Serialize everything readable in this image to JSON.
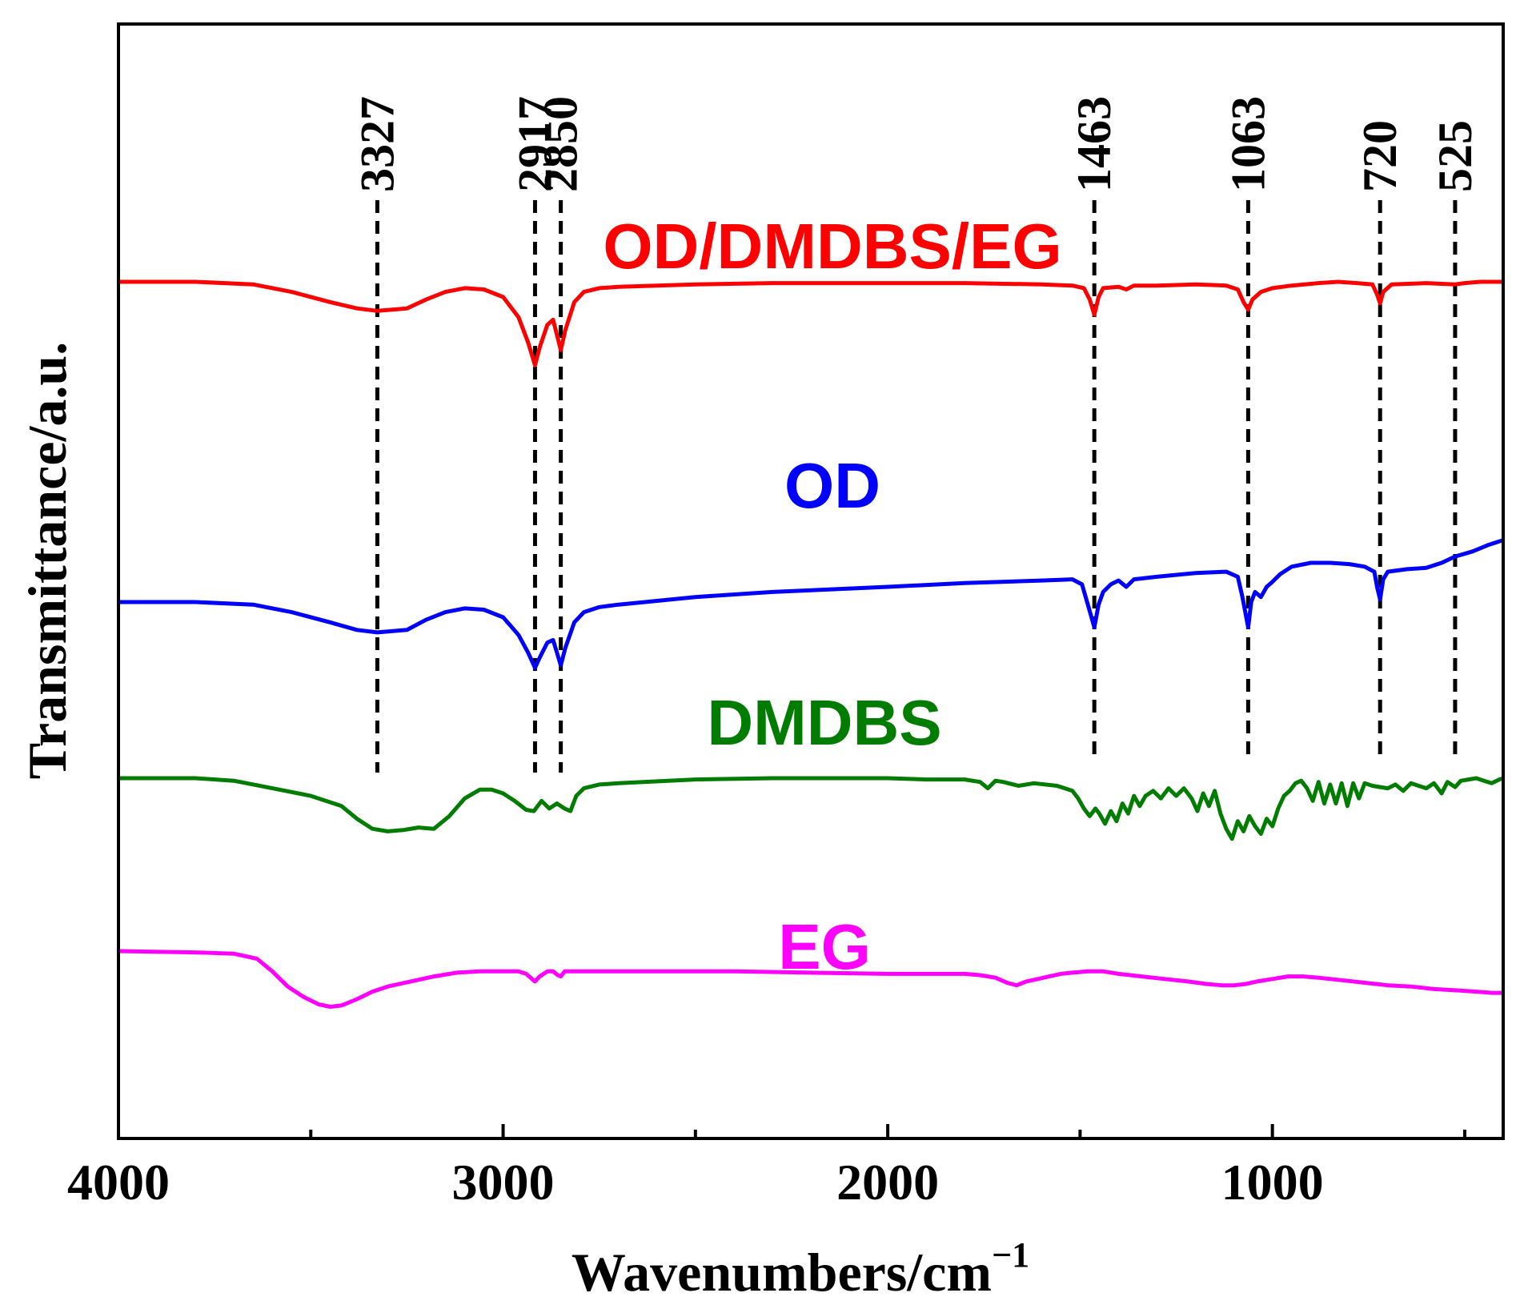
{
  "chart_data": {
    "type": "line",
    "title": "",
    "xlabel": "Wavenumbers/cm",
    "xlabel_sup": "−1",
    "ylabel": "Transmittance/a.u.",
    "xlim": [
      4000,
      400
    ],
    "x_reversed": true,
    "x_ticks": [
      4000,
      3000,
      2000,
      1000
    ],
    "x_tick_labels": [
      "4000",
      "3000",
      "2000",
      "1000"
    ],
    "x_minor_ticks": [
      3500,
      2500,
      1500,
      500
    ],
    "y_ticks_visible": false,
    "grid": false,
    "peaks": [
      {
        "x": 3327,
        "label": "3327"
      },
      {
        "x": 2917,
        "label": "2917"
      },
      {
        "x": 2850,
        "label": "2850"
      },
      {
        "x": 1463,
        "label": "1463"
      },
      {
        "x": 1063,
        "label": "1063"
      },
      {
        "x": 720,
        "label": "720"
      },
      {
        "x": 525,
        "label": "525"
      }
    ],
    "series": [
      {
        "name": "OD/DMDBS/EG",
        "label": "OD/DMDBS/EG",
        "color": "#ff0000",
        "offset": 4,
        "points": [
          [
            4000,
            100
          ],
          [
            3800,
            100
          ],
          [
            3650,
            98
          ],
          [
            3550,
            92
          ],
          [
            3450,
            84
          ],
          [
            3380,
            79
          ],
          [
            3327,
            77
          ],
          [
            3250,
            79
          ],
          [
            3200,
            86
          ],
          [
            3150,
            92
          ],
          [
            3100,
            95
          ],
          [
            3050,
            94
          ],
          [
            3000,
            88
          ],
          [
            2960,
            72
          ],
          [
            2935,
            52
          ],
          [
            2917,
            34
          ],
          [
            2905,
            48
          ],
          [
            2885,
            66
          ],
          [
            2870,
            70
          ],
          [
            2860,
            58
          ],
          [
            2850,
            46
          ],
          [
            2838,
            62
          ],
          [
            2815,
            84
          ],
          [
            2790,
            92
          ],
          [
            2750,
            95
          ],
          [
            2700,
            96
          ],
          [
            2500,
            98
          ],
          [
            2300,
            99
          ],
          [
            2000,
            99
          ],
          [
            1800,
            99
          ],
          [
            1600,
            98
          ],
          [
            1520,
            97
          ],
          [
            1490,
            95
          ],
          [
            1475,
            86
          ],
          [
            1463,
            74
          ],
          [
            1452,
            88
          ],
          [
            1440,
            95
          ],
          [
            1400,
            96
          ],
          [
            1380,
            94
          ],
          [
            1360,
            97
          ],
          [
            1300,
            97
          ],
          [
            1200,
            98
          ],
          [
            1120,
            97
          ],
          [
            1090,
            94
          ],
          [
            1075,
            84
          ],
          [
            1063,
            78
          ],
          [
            1052,
            86
          ],
          [
            1030,
            92
          ],
          [
            1000,
            95
          ],
          [
            950,
            97
          ],
          [
            880,
            99
          ],
          [
            830,
            100
          ],
          [
            780,
            99
          ],
          [
            740,
            98
          ],
          [
            728,
            90
          ],
          [
            720,
            83
          ],
          [
            712,
            92
          ],
          [
            690,
            98
          ],
          [
            600,
            99
          ],
          [
            525,
            98
          ],
          [
            500,
            99
          ],
          [
            460,
            100
          ],
          [
            400,
            100
          ]
        ]
      },
      {
        "name": "OD",
        "label": "OD",
        "color": "#0000ff",
        "offset": 3,
        "points": [
          [
            4000,
            100
          ],
          [
            3800,
            100
          ],
          [
            3650,
            98
          ],
          [
            3550,
            92
          ],
          [
            3450,
            84
          ],
          [
            3380,
            78
          ],
          [
            3327,
            76
          ],
          [
            3250,
            78
          ],
          [
            3200,
            86
          ],
          [
            3150,
            92
          ],
          [
            3100,
            95
          ],
          [
            3050,
            94
          ],
          [
            3000,
            88
          ],
          [
            2960,
            74
          ],
          [
            2935,
            60
          ],
          [
            2917,
            48
          ],
          [
            2905,
            56
          ],
          [
            2885,
            68
          ],
          [
            2870,
            70
          ],
          [
            2860,
            60
          ],
          [
            2850,
            50
          ],
          [
            2838,
            64
          ],
          [
            2815,
            84
          ],
          [
            2790,
            92
          ],
          [
            2750,
            96
          ],
          [
            2700,
            98
          ],
          [
            2500,
            104
          ],
          [
            2300,
            108
          ],
          [
            2000,
            112
          ],
          [
            1800,
            115
          ],
          [
            1600,
            117
          ],
          [
            1520,
            118
          ],
          [
            1495,
            114
          ],
          [
            1478,
            96
          ],
          [
            1463,
            80
          ],
          [
            1452,
            98
          ],
          [
            1440,
            108
          ],
          [
            1420,
            114
          ],
          [
            1400,
            117
          ],
          [
            1380,
            112
          ],
          [
            1360,
            118
          ],
          [
            1300,
            120
          ],
          [
            1200,
            123
          ],
          [
            1120,
            124
          ],
          [
            1090,
            120
          ],
          [
            1078,
            104
          ],
          [
            1063,
            80
          ],
          [
            1055,
            100
          ],
          [
            1045,
            108
          ],
          [
            1030,
            104
          ],
          [
            1015,
            112
          ],
          [
            1000,
            116
          ],
          [
            980,
            122
          ],
          [
            950,
            128
          ],
          [
            900,
            131
          ],
          [
            850,
            131
          ],
          [
            800,
            130
          ],
          [
            760,
            128
          ],
          [
            735,
            124
          ],
          [
            728,
            112
          ],
          [
            720,
            102
          ],
          [
            712,
            118
          ],
          [
            700,
            124
          ],
          [
            650,
            126
          ],
          [
            600,
            127
          ],
          [
            560,
            131
          ],
          [
            525,
            136
          ],
          [
            480,
            140
          ],
          [
            440,
            145
          ],
          [
            400,
            149
          ]
        ]
      },
      {
        "name": "DMDBS",
        "label": "DMDBS",
        "color": "#007d00",
        "offset": 2,
        "points": [
          [
            4000,
            100
          ],
          [
            3800,
            100
          ],
          [
            3700,
            98
          ],
          [
            3600,
            92
          ],
          [
            3500,
            86
          ],
          [
            3420,
            78
          ],
          [
            3380,
            68
          ],
          [
            3340,
            60
          ],
          [
            3300,
            58
          ],
          [
            3260,
            59
          ],
          [
            3220,
            61
          ],
          [
            3180,
            60
          ],
          [
            3140,
            70
          ],
          [
            3100,
            84
          ],
          [
            3060,
            91
          ],
          [
            3030,
            91
          ],
          [
            3000,
            88
          ],
          [
            2970,
            82
          ],
          [
            2940,
            75
          ],
          [
            2920,
            74
          ],
          [
            2900,
            82
          ],
          [
            2880,
            76
          ],
          [
            2860,
            80
          ],
          [
            2840,
            76
          ],
          [
            2825,
            74
          ],
          [
            2810,
            86
          ],
          [
            2790,
            92
          ],
          [
            2750,
            95
          ],
          [
            2700,
            96
          ],
          [
            2500,
            99
          ],
          [
            2300,
            100
          ],
          [
            2000,
            100
          ],
          [
            1900,
            99
          ],
          [
            1800,
            99
          ],
          [
            1760,
            97
          ],
          [
            1740,
            92
          ],
          [
            1720,
            98
          ],
          [
            1700,
            97
          ],
          [
            1660,
            94
          ],
          [
            1620,
            96
          ],
          [
            1560,
            94
          ],
          [
            1520,
            90
          ],
          [
            1505,
            84
          ],
          [
            1490,
            76
          ],
          [
            1475,
            70
          ],
          [
            1460,
            76
          ],
          [
            1450,
            72
          ],
          [
            1435,
            64
          ],
          [
            1420,
            74
          ],
          [
            1405,
            66
          ],
          [
            1390,
            80
          ],
          [
            1375,
            72
          ],
          [
            1360,
            86
          ],
          [
            1345,
            78
          ],
          [
            1330,
            86
          ],
          [
            1310,
            90
          ],
          [
            1290,
            84
          ],
          [
            1270,
            92
          ],
          [
            1250,
            86
          ],
          [
            1230,
            92
          ],
          [
            1210,
            84
          ],
          [
            1195,
            74
          ],
          [
            1180,
            88
          ],
          [
            1165,
            78
          ],
          [
            1150,
            90
          ],
          [
            1135,
            72
          ],
          [
            1120,
            60
          ],
          [
            1105,
            52
          ],
          [
            1090,
            66
          ],
          [
            1075,
            58
          ],
          [
            1060,
            70
          ],
          [
            1045,
            62
          ],
          [
            1030,
            56
          ],
          [
            1015,
            68
          ],
          [
            1000,
            62
          ],
          [
            985,
            76
          ],
          [
            970,
            86
          ],
          [
            955,
            90
          ],
          [
            940,
            96
          ],
          [
            925,
            98
          ],
          [
            910,
            92
          ],
          [
            895,
            82
          ],
          [
            880,
            97
          ],
          [
            865,
            80
          ],
          [
            850,
            95
          ],
          [
            835,
            80
          ],
          [
            820,
            96
          ],
          [
            805,
            78
          ],
          [
            790,
            96
          ],
          [
            775,
            84
          ],
          [
            760,
            96
          ],
          [
            740,
            94
          ],
          [
            720,
            93
          ],
          [
            700,
            92
          ],
          [
            680,
            95
          ],
          [
            660,
            90
          ],
          [
            640,
            96
          ],
          [
            620,
            94
          ],
          [
            600,
            92
          ],
          [
            580,
            96
          ],
          [
            560,
            88
          ],
          [
            545,
            97
          ],
          [
            525,
            93
          ],
          [
            510,
            98
          ],
          [
            490,
            99
          ],
          [
            470,
            100
          ],
          [
            450,
            98
          ],
          [
            430,
            96
          ],
          [
            410,
            99
          ],
          [
            400,
            100
          ]
        ]
      },
      {
        "name": "EG",
        "label": "EG",
        "color": "#ff00ff",
        "offset": 1,
        "points": [
          [
            4000,
            100
          ],
          [
            3800,
            99
          ],
          [
            3700,
            98
          ],
          [
            3640,
            94
          ],
          [
            3600,
            84
          ],
          [
            3560,
            72
          ],
          [
            3520,
            64
          ],
          [
            3480,
            58
          ],
          [
            3450,
            56
          ],
          [
            3420,
            57
          ],
          [
            3380,
            62
          ],
          [
            3340,
            68
          ],
          [
            3300,
            72
          ],
          [
            3240,
            76
          ],
          [
            3180,
            80
          ],
          [
            3120,
            83
          ],
          [
            3060,
            84
          ],
          [
            3000,
            84
          ],
          [
            2960,
            84
          ],
          [
            2940,
            82
          ],
          [
            2925,
            78
          ],
          [
            2917,
            76
          ],
          [
            2905,
            80
          ],
          [
            2885,
            84
          ],
          [
            2870,
            84
          ],
          [
            2858,
            81
          ],
          [
            2850,
            80
          ],
          [
            2840,
            84
          ],
          [
            2800,
            84
          ],
          [
            2600,
            84
          ],
          [
            2400,
            84
          ],
          [
            2200,
            83
          ],
          [
            2000,
            82
          ],
          [
            1900,
            82
          ],
          [
            1800,
            82
          ],
          [
            1760,
            81
          ],
          [
            1720,
            79
          ],
          [
            1690,
            75
          ],
          [
            1665,
            73
          ],
          [
            1640,
            76
          ],
          [
            1610,
            78
          ],
          [
            1580,
            80
          ],
          [
            1550,
            82
          ],
          [
            1520,
            83
          ],
          [
            1480,
            84
          ],
          [
            1440,
            84
          ],
          [
            1400,
            82
          ],
          [
            1340,
            80
          ],
          [
            1280,
            78
          ],
          [
            1220,
            76
          ],
          [
            1170,
            74
          ],
          [
            1130,
            73
          ],
          [
            1100,
            73
          ],
          [
            1070,
            74
          ],
          [
            1040,
            76
          ],
          [
            1000,
            78
          ],
          [
            960,
            80
          ],
          [
            920,
            80
          ],
          [
            880,
            79
          ],
          [
            820,
            77
          ],
          [
            760,
            75
          ],
          [
            700,
            73
          ],
          [
            640,
            72
          ],
          [
            580,
            70
          ],
          [
            520,
            69
          ],
          [
            470,
            68
          ],
          [
            430,
            67
          ],
          [
            400,
            67
          ]
        ]
      }
    ]
  }
}
